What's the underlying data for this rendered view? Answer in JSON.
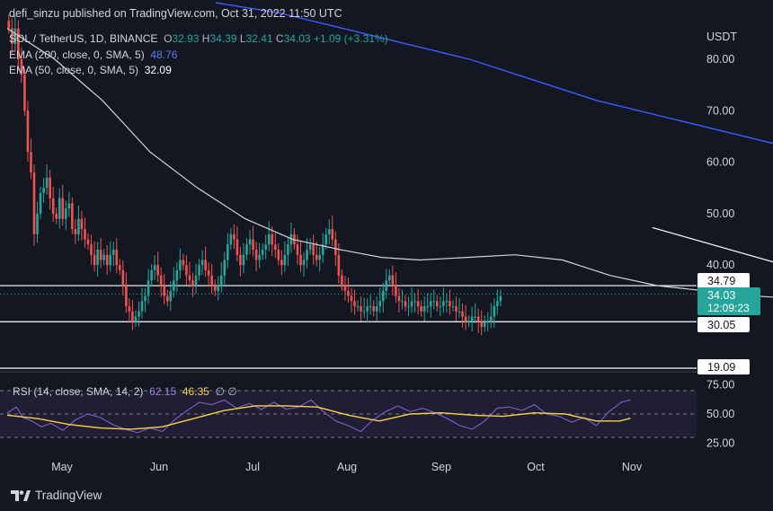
{
  "publisher": "defi_sinzu published on TradingView.com, Oct 31, 2022 11:50 UTC",
  "header": {
    "symbol": "SOL / TetherUS, 1D, BINANCE",
    "open_label": "O",
    "open": "32.93",
    "high_label": "H",
    "high": "34.39",
    "low_label": "L",
    "low": "32.41",
    "close_label": "C",
    "close": "34.03",
    "change": "+1.09 (+3.31%)",
    "ema200_label": "EMA (200, close, 0, SMA, 5)",
    "ema200_value": "48.76",
    "ema50_label": "EMA (50, close, 0, SMA, 5)",
    "ema50_value": "32.09"
  },
  "currency": "USDT",
  "price_badges": {
    "resistance": "34.79",
    "last": "34.03",
    "countdown": "12:09:23",
    "support": "30.05",
    "pane_low": "19.09"
  },
  "rsi_header": {
    "label": "RSI (14, close, SMA, 14, 2)",
    "rsi": "62.15",
    "sma": "46.35",
    "extras": "∅ ∅"
  },
  "brand": "TradingView",
  "colors": {
    "bg": "#131722",
    "up": "#26a69a",
    "down": "#ef5350",
    "ema200": "#3d5afe",
    "ema50": "#d1d4dc",
    "rsi": "#7e57c2",
    "rsi_sma": "#f5d34c"
  },
  "chart_data": {
    "type": "candlestick",
    "title": "SOL / TetherUS, 1D, BINANCE",
    "x_ticks": [
      "May",
      "Jun",
      "Jul",
      "Aug",
      "Sep",
      "Oct",
      "Nov"
    ],
    "price_ticks": [
      80,
      70,
      60,
      50,
      40
    ],
    "price_ylim": [
      19,
      87
    ],
    "rsi_ticks": [
      75,
      50,
      25
    ],
    "rsi_ylim": [
      20,
      80
    ],
    "rsi_bands": [
      70,
      50,
      30
    ],
    "horizontal_levels": [
      34.79,
      30.05
    ],
    "series_close": [
      86,
      83,
      86,
      80,
      77,
      70,
      62,
      58,
      46,
      50,
      54,
      55,
      57,
      53,
      50,
      49,
      53,
      49,
      51,
      52,
      47,
      46,
      49,
      47,
      45,
      44,
      42,
      40,
      43,
      41,
      42,
      40,
      42,
      43,
      40,
      39,
      36,
      32,
      31,
      29,
      30,
      31,
      33,
      34,
      37,
      39,
      40,
      38,
      36,
      34,
      33,
      35,
      37,
      39,
      41,
      40,
      38,
      37,
      36,
      38,
      40,
      41,
      39,
      38,
      36,
      35,
      36,
      38,
      41,
      44,
      46,
      45,
      42,
      40,
      42,
      44,
      45,
      43,
      41,
      42,
      43,
      44,
      46,
      44,
      43,
      41,
      40,
      42,
      44,
      46,
      44,
      42,
      40,
      41,
      43,
      44,
      42,
      41,
      42,
      44,
      46,
      47,
      45,
      42,
      38,
      36,
      35,
      34,
      33,
      32,
      32,
      31,
      31,
      32,
      32,
      31,
      32,
      33,
      35,
      37,
      38,
      36,
      34,
      33,
      33,
      32,
      32,
      33,
      33,
      32,
      31,
      32,
      32,
      33,
      33,
      32,
      32,
      33,
      33,
      32,
      32,
      31,
      31,
      30,
      29,
      29,
      30,
      30,
      29,
      28,
      29,
      29,
      30,
      32,
      33,
      34
    ],
    "ema200": [
      [
        0,
        91
      ],
      [
        20,
        89
      ],
      [
        40,
        86
      ],
      [
        60,
        83
      ],
      [
        80,
        80
      ],
      [
        100,
        76
      ],
      [
        120,
        72
      ],
      [
        140,
        69
      ],
      [
        160,
        66
      ],
      [
        180,
        63
      ],
      [
        200,
        60
      ],
      [
        220,
        57
      ],
      [
        240,
        54
      ],
      [
        258,
        52
      ],
      [
        278,
        50
      ],
      [
        300,
        48.76
      ]
    ],
    "ema50": [
      [
        0,
        86
      ],
      [
        15,
        80
      ],
      [
        30,
        72
      ],
      [
        45,
        62
      ],
      [
        60,
        55
      ],
      [
        75,
        49
      ],
      [
        90,
        45
      ],
      [
        105,
        43
      ],
      [
        118,
        41.5
      ],
      [
        130,
        41
      ],
      [
        145,
        41.5
      ],
      [
        160,
        42
      ],
      [
        175,
        41
      ],
      [
        190,
        38
      ],
      [
        205,
        36
      ],
      [
        220,
        35
      ],
      [
        235,
        34
      ],
      [
        250,
        33.5
      ],
      [
        265,
        33
      ],
      [
        280,
        32.5
      ],
      [
        300,
        32.09
      ]
    ],
    "trendline": [
      [
        192,
        47.3
      ],
      [
        299,
        28.5
      ]
    ],
    "rsi": [
      [
        0,
        51
      ],
      [
        6,
        56
      ],
      [
        10,
        47
      ],
      [
        16,
        44
      ],
      [
        22,
        39
      ],
      [
        28,
        42
      ],
      [
        36,
        36
      ],
      [
        44,
        45
      ],
      [
        52,
        50
      ],
      [
        60,
        47
      ],
      [
        68,
        41
      ],
      [
        76,
        37
      ],
      [
        84,
        34
      ],
      [
        92,
        38
      ],
      [
        100,
        35
      ],
      [
        108,
        45
      ],
      [
        116,
        53
      ],
      [
        124,
        60
      ],
      [
        132,
        58
      ],
      [
        140,
        62
      ],
      [
        148,
        55
      ],
      [
        156,
        59
      ],
      [
        164,
        54
      ],
      [
        172,
        60
      ],
      [
        180,
        54
      ],
      [
        188,
        56
      ],
      [
        196,
        62
      ],
      [
        204,
        52
      ],
      [
        212,
        44
      ],
      [
        220,
        40
      ],
      [
        228,
        35
      ],
      [
        236,
        45
      ],
      [
        244,
        52
      ],
      [
        252,
        57
      ],
      [
        260,
        52
      ],
      [
        268,
        55
      ],
      [
        276,
        51
      ],
      [
        284,
        46
      ],
      [
        292,
        40
      ],
      [
        300,
        37
      ],
      [
        308,
        44
      ],
      [
        316,
        55
      ],
      [
        324,
        56
      ],
      [
        332,
        53
      ],
      [
        340,
        58
      ],
      [
        348,
        50
      ],
      [
        356,
        48
      ],
      [
        364,
        43
      ],
      [
        372,
        47
      ],
      [
        380,
        40
      ],
      [
        388,
        52
      ],
      [
        396,
        60
      ],
      [
        402,
        62.15
      ]
    ],
    "rsi_sma": [
      [
        0,
        49
      ],
      [
        20,
        46
      ],
      [
        40,
        41
      ],
      [
        60,
        38
      ],
      [
        80,
        37
      ],
      [
        100,
        39
      ],
      [
        120,
        46
      ],
      [
        140,
        53
      ],
      [
        160,
        57
      ],
      [
        180,
        57
      ],
      [
        200,
        56
      ],
      [
        220,
        49
      ],
      [
        240,
        44
      ],
      [
        260,
        50
      ],
      [
        280,
        51
      ],
      [
        300,
        49
      ],
      [
        320,
        48
      ],
      [
        340,
        51
      ],
      [
        360,
        50
      ],
      [
        380,
        44
      ],
      [
        395,
        44
      ],
      [
        402,
        46.35
      ]
    ]
  }
}
